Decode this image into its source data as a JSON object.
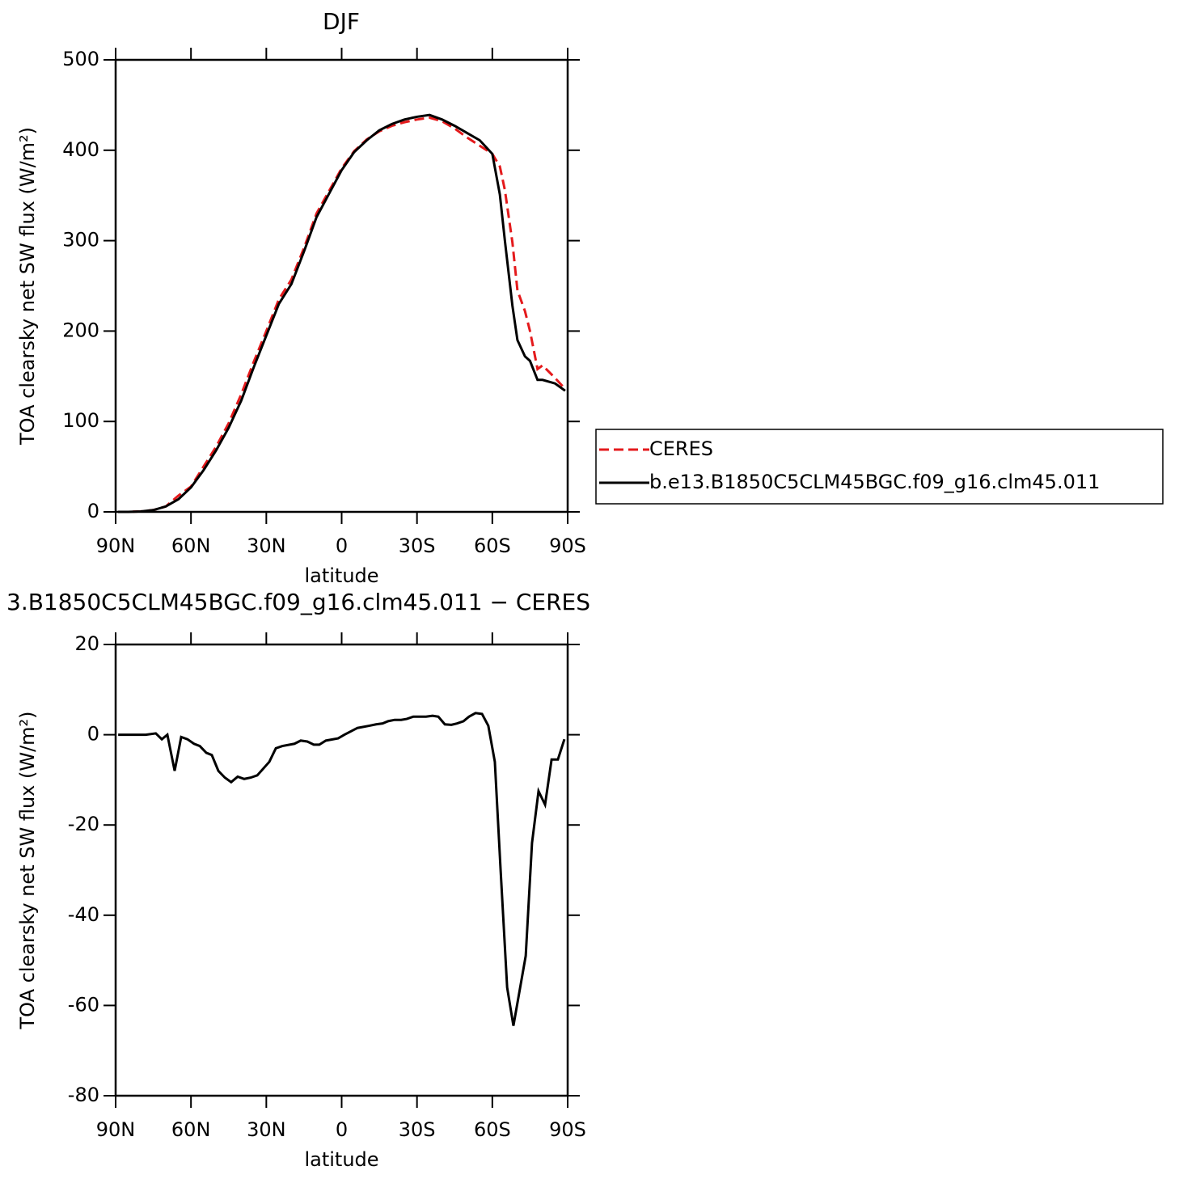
{
  "chart_data": [
    {
      "type": "line",
      "title": "DJF",
      "xlabel": "latitude",
      "ylabel": "TOA clearsky net SW flux (W/m²)",
      "x": [
        89,
        85,
        80,
        75,
        70,
        65,
        60,
        55,
        50,
        45,
        40,
        35,
        30,
        25,
        20,
        15,
        10,
        5,
        0,
        -5,
        -10,
        -15,
        -20,
        -25,
        -30,
        -35,
        -40,
        -45,
        -50,
        -55,
        -60,
        -63,
        -65,
        -68,
        -70,
        -73,
        -75,
        -78,
        -80,
        -85,
        -89
      ],
      "series": [
        {
          "name": "CERES",
          "color": "#e41a1c",
          "dashed": true,
          "values": [
            0,
            0,
            0.5,
            2,
            6,
            18,
            28,
            50,
            72,
            98,
            130,
            166,
            200,
            235,
            257,
            292,
            330,
            355,
            380,
            399,
            412,
            421,
            427,
            431,
            434,
            436,
            432,
            424,
            414,
            405,
            396,
            382,
            356,
            298,
            245,
            222,
            200,
            158,
            162,
            148,
            136
          ]
        },
        {
          "name": "b.e13.B1850C5CLM45BGC.f09_g16.clm45.011",
          "color": "#000000",
          "dashed": false,
          "values": [
            0,
            0,
            0.5,
            2,
            6,
            14,
            27,
            46,
            68,
            93,
            123,
            160,
            195,
            230,
            252,
            288,
            326,
            352,
            378,
            398,
            411,
            422,
            429,
            434,
            437,
            439,
            434,
            427,
            419,
            411,
            396,
            351,
            300,
            228,
            190,
            172,
            167,
            146,
            146,
            142,
            134
          ]
        }
      ],
      "xlim": [
        90,
        -90
      ],
      "xticks": [
        {
          "value": 90,
          "label": "90N"
        },
        {
          "value": 60,
          "label": "60N"
        },
        {
          "value": 30,
          "label": "30N"
        },
        0,
        {
          "value": -30,
          "label": "30S"
        },
        {
          "value": -60,
          "label": "60S"
        },
        {
          "value": -90,
          "label": "90S"
        }
      ],
      "ylim": [
        0,
        500
      ],
      "yticks": [
        0,
        100,
        200,
        300,
        400,
        500
      ],
      "legend": "right"
    },
    {
      "type": "line",
      "title": "3.B1850C5CLM45BGC.f09_g16.clm45.011 − CERES",
      "xlabel": "latitude",
      "ylabel": "TOA clearsky net SW flux (W/m²)",
      "x": [
        89,
        78,
        74,
        71.6,
        69.4,
        66.5,
        63.9,
        61.4,
        58.8,
        56.5,
        53.9,
        51.7,
        49.1,
        46.5,
        44,
        41.4,
        38.8,
        36.2,
        33.6,
        28.8,
        26.2,
        23.6,
        18.8,
        16.3,
        13.7,
        11.1,
        8.9,
        6.3,
        1.4,
        -1.1,
        -6.3,
        -11.1,
        -13.7,
        -16.3,
        -18.5,
        -21.1,
        -23.7,
        -25.9,
        -28.5,
        -33.6,
        -36.2,
        -38.5,
        -41.1,
        -43.7,
        -45.9,
        -48.5,
        -50.7,
        -53.3,
        -55.9,
        -58.4,
        -61,
        -63.3,
        -65.9,
        -68.4,
        -73.3,
        -75.8,
        -78.4,
        -81,
        -83.6,
        -86.1,
        -88.7
      ],
      "color": "#000000",
      "values": [
        0,
        0,
        0.3,
        -1,
        0,
        -8,
        -0.5,
        -1,
        -2,
        -2.5,
        -4,
        -4.5,
        -8,
        -9.5,
        -10.5,
        -9.3,
        -9.8,
        -9.5,
        -9,
        -6,
        -3,
        -2.5,
        -2,
        -1.3,
        -1.5,
        -2.2,
        -2.2,
        -1.3,
        -0.8,
        0,
        1.5,
        2,
        2.3,
        2.5,
        3,
        3.3,
        3.3,
        3.5,
        4,
        4,
        4.2,
        4,
        2.3,
        2.2,
        2.5,
        3,
        4,
        4.8,
        4.6,
        2,
        -6,
        -30,
        -56,
        -64.5,
        -49,
        -24,
        -12.5,
        -15.5,
        -5.5,
        -5.5,
        -1
      ],
      "xlim": [
        90,
        -90
      ],
      "xticks": [
        {
          "value": 90,
          "label": "90N"
        },
        {
          "value": 60,
          "label": "60N"
        },
        {
          "value": 30,
          "label": "30N"
        },
        0,
        {
          "value": -30,
          "label": "30S"
        },
        {
          "value": -60,
          "label": "60S"
        },
        {
          "value": -90,
          "label": "90S"
        }
      ],
      "ylim": [
        -80,
        20
      ],
      "yticks": [
        -80,
        -60,
        -40,
        -20,
        0,
        20
      ]
    }
  ]
}
